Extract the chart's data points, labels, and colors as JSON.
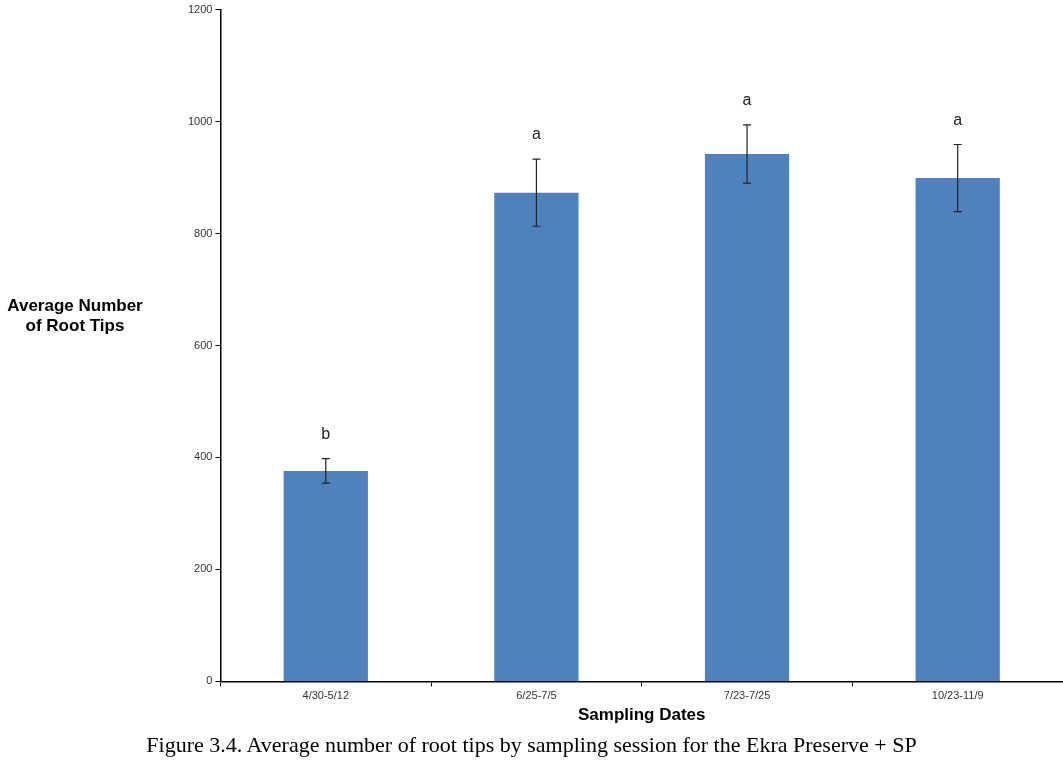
{
  "chart_data": {
    "type": "bar",
    "xlabel": "Sampling Dates",
    "ylabel": "Average Number of Root Tips",
    "categories": [
      "4/30-5/12",
      "6/25-7/5",
      "7/23-7/25",
      "10/23-11/9"
    ],
    "values": [
      376,
      873,
      942,
      899
    ],
    "errors": [
      22,
      60,
      52,
      60
    ],
    "color": "#4f81bd",
    "ylim": [
      0,
      1200
    ],
    "yticks": [
      0,
      200,
      400,
      600,
      800,
      1000,
      1200
    ],
    "grid": false,
    "legend": false,
    "annotations": [
      "b",
      "a",
      "a",
      "a",
      "Figure 3.4. Average number of root tips by sampling session for the Ekra Preserve + SP"
    ]
  }
}
